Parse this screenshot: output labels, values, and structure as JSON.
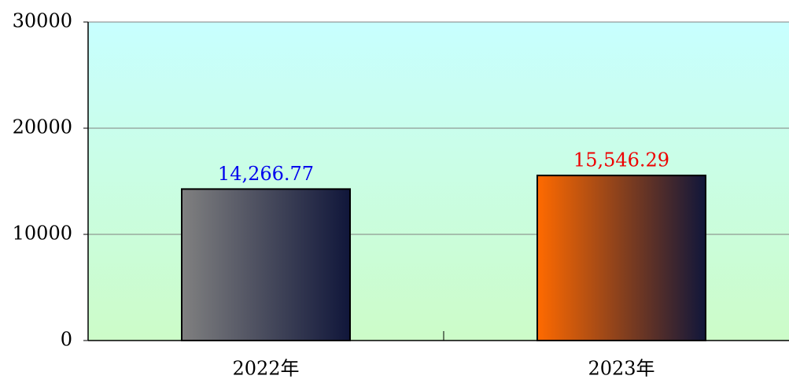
{
  "chart_data": {
    "type": "bar",
    "categories": [
      "2022年",
      "2023年"
    ],
    "values": [
      14266.77,
      15546.29
    ],
    "value_labels": [
      "14,266.77",
      "15,546.29"
    ],
    "colors": [
      "#808080",
      "#ff6a00"
    ],
    "gradient_end": "#10163a",
    "label_colors": [
      "#0000ee",
      "#ee0000"
    ],
    "ylim": [
      0,
      30000
    ],
    "yticks": [
      0,
      10000,
      20000,
      30000
    ],
    "grid": true
  }
}
